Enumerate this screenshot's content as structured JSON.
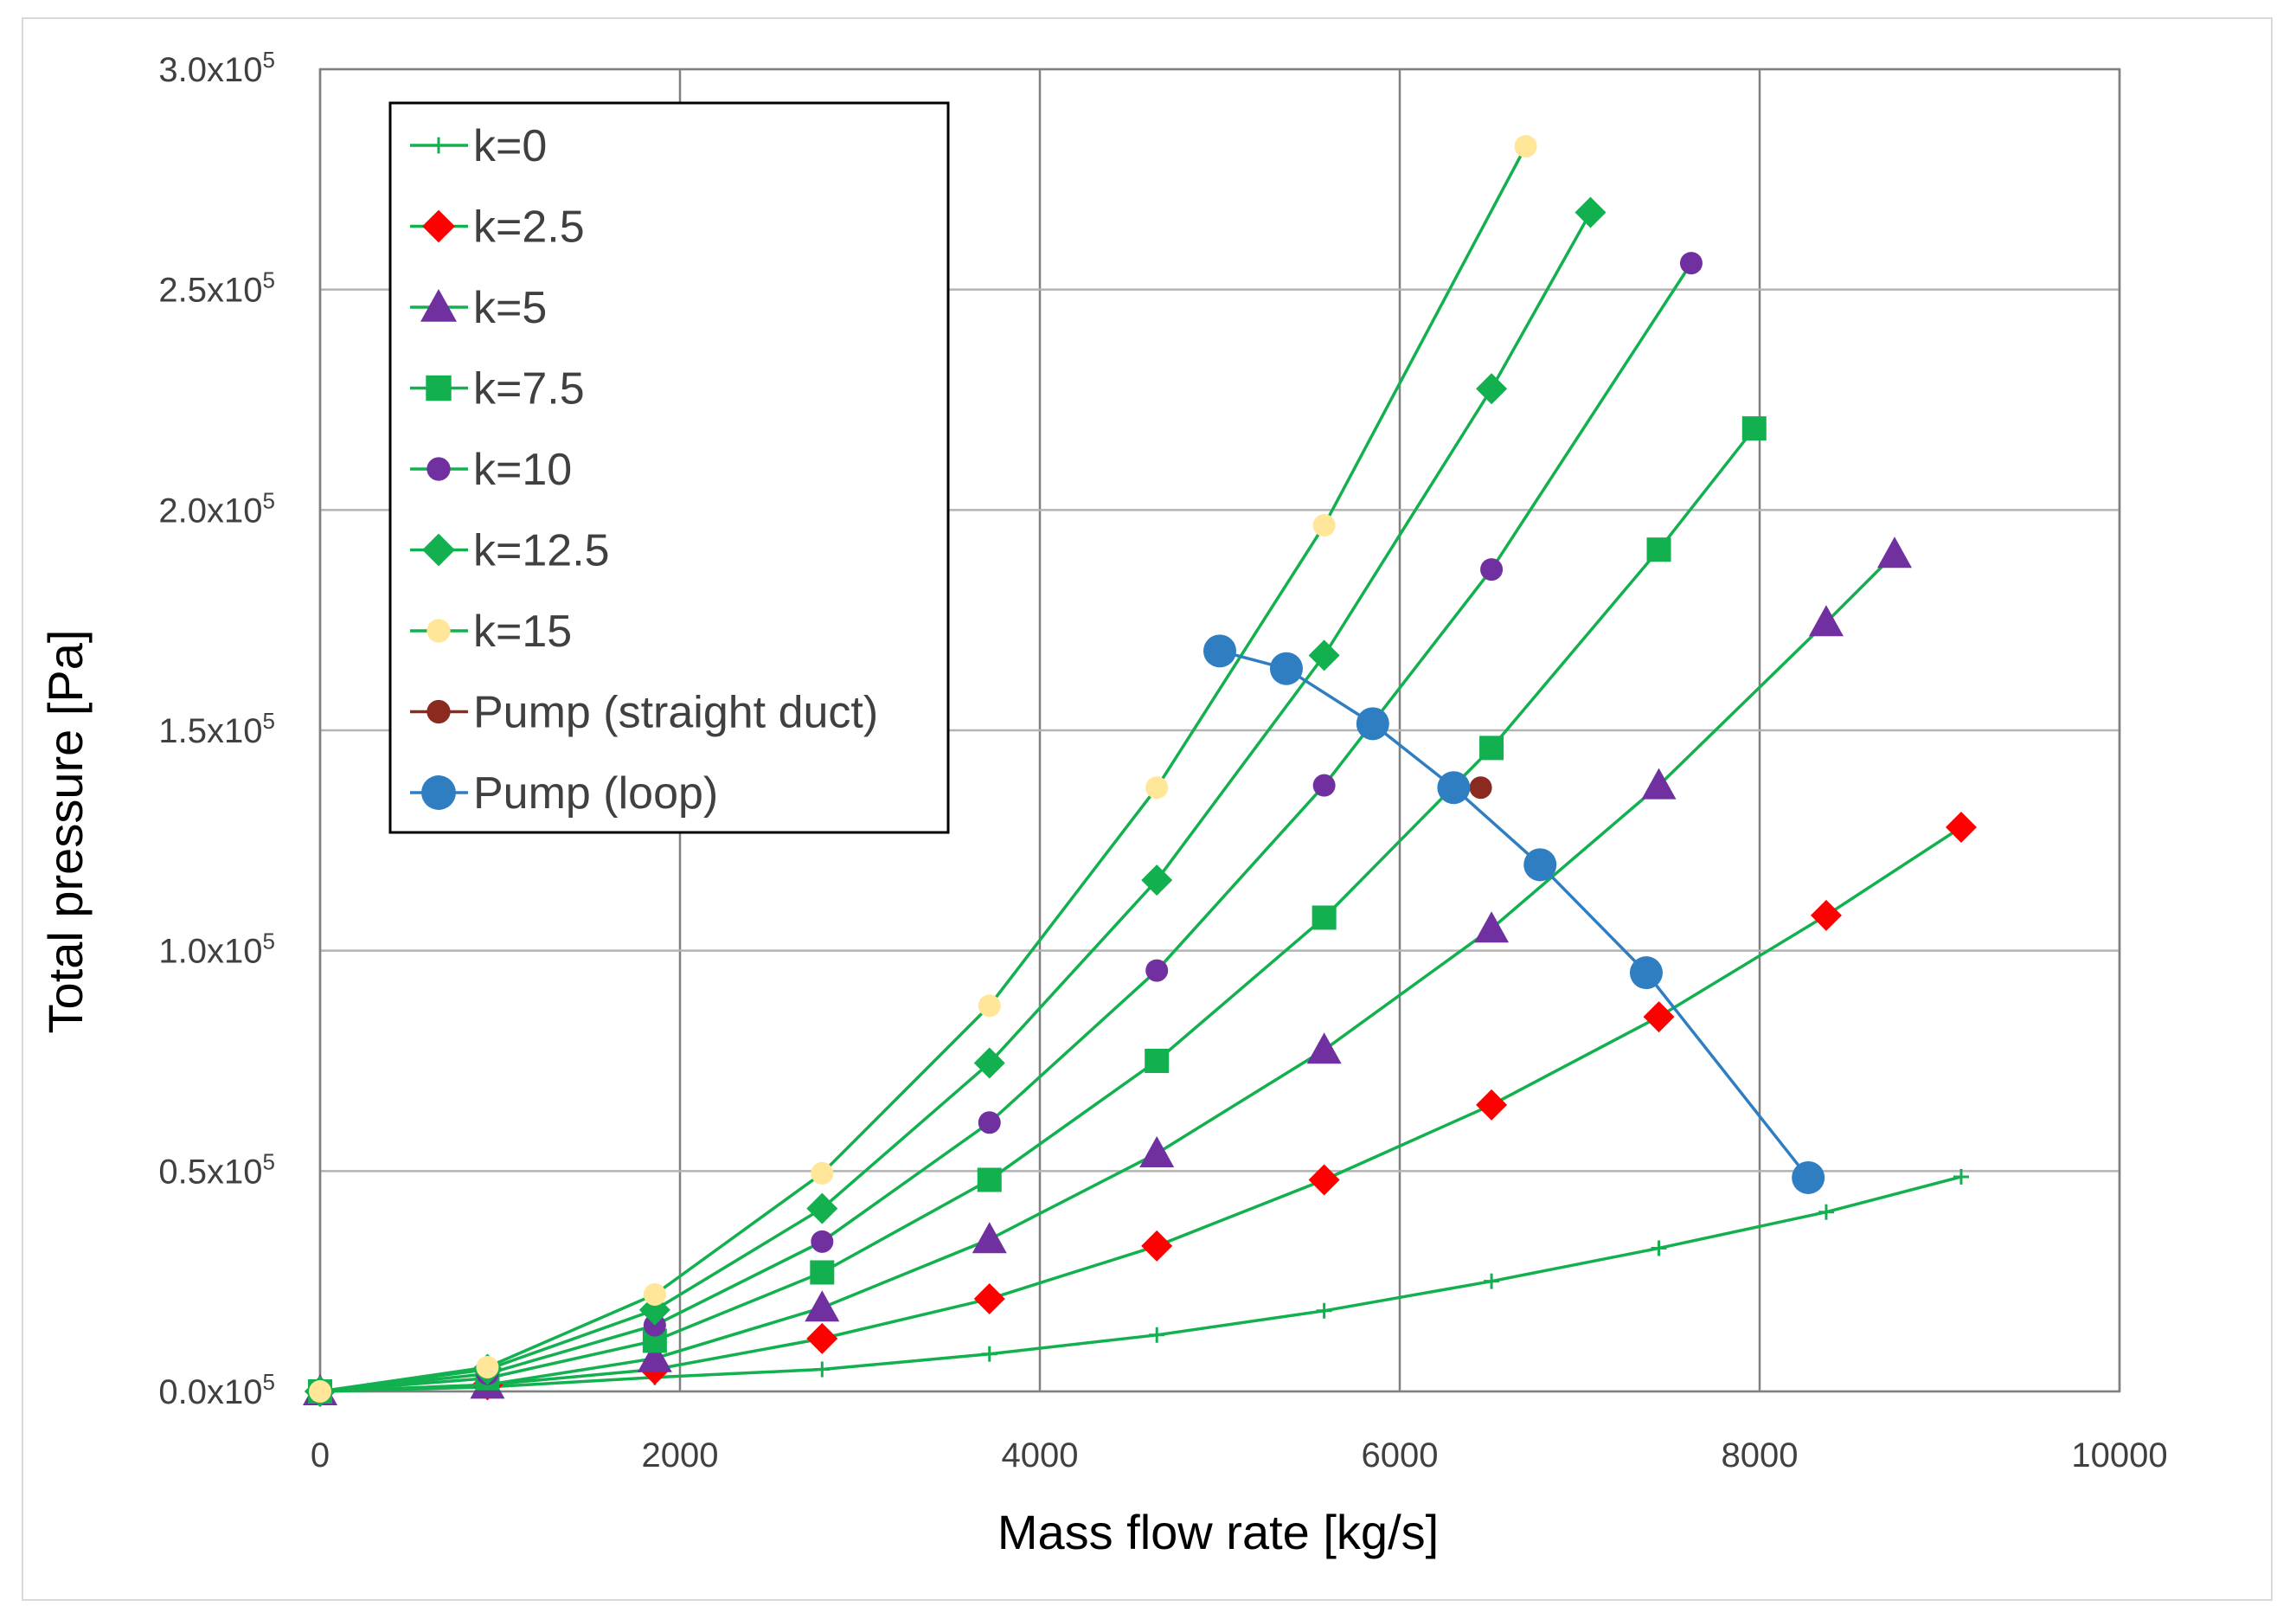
{
  "chart_data": {
    "type": "line",
    "title": "",
    "xlabel": "Mass flow rate [kg/s]",
    "ylabel": "Total pressure [Pa]",
    "xlim": [
      0,
      10000
    ],
    "ylim": [
      0,
      300000
    ],
    "grid": true,
    "legend_position": "top-left",
    "x_ticks": [
      "0",
      "2000",
      "4000",
      "6000",
      "8000",
      "10000"
    ],
    "x_tick_values": [
      0,
      2000,
      4000,
      6000,
      8000,
      10000
    ],
    "y_ticks": [
      {
        "mantissa": "0.0x10",
        "exp": "5",
        "value": 0
      },
      {
        "mantissa": "0.5x10",
        "exp": "5",
        "value": 50000
      },
      {
        "mantissa": "1.0x10",
        "exp": "5",
        "value": 100000
      },
      {
        "mantissa": "1.5x10",
        "exp": "5",
        "value": 150000
      },
      {
        "mantissa": "2.0x10",
        "exp": "5",
        "value": 200000
      },
      {
        "mantissa": "2.5x10",
        "exp": "5",
        "value": 250000
      },
      {
        "mantissa": "3.0x10",
        "exp": "5",
        "value": 300000
      }
    ],
    "series": [
      {
        "name": "k=0",
        "marker": "plus",
        "line_color": "#12b04e",
        "marker_color": "#12b04e",
        "points": [
          [
            0,
            0
          ],
          [
            930,
            1000
          ],
          [
            1860,
            3200
          ],
          [
            2790,
            5000
          ],
          [
            3720,
            8500
          ],
          [
            4650,
            12800
          ],
          [
            5580,
            18300
          ],
          [
            6510,
            25000
          ],
          [
            7440,
            32500
          ],
          [
            8370,
            40700
          ],
          [
            9120,
            48700
          ]
        ]
      },
      {
        "name": "k=2.5",
        "marker": "diamond",
        "line_color": "#12b04e",
        "marker_color": "#ff0000",
        "points": [
          [
            0,
            0
          ],
          [
            930,
            1500
          ],
          [
            1860,
            5000
          ],
          [
            2790,
            12000
          ],
          [
            3720,
            21000
          ],
          [
            4650,
            33000
          ],
          [
            5580,
            48000
          ],
          [
            6510,
            65000
          ],
          [
            7440,
            85000
          ],
          [
            8370,
            108000
          ],
          [
            9120,
            128000
          ]
        ]
      },
      {
        "name": "k=5",
        "marker": "triangle",
        "line_color": "#12b04e",
        "marker_color": "#7030a0",
        "points": [
          [
            0,
            0
          ],
          [
            930,
            1500
          ],
          [
            1860,
            7500
          ],
          [
            2790,
            19000
          ],
          [
            3720,
            34500
          ],
          [
            4650,
            54000
          ],
          [
            5580,
            77500
          ],
          [
            6510,
            105000
          ],
          [
            7440,
            137500
          ],
          [
            8370,
            174500
          ],
          [
            8750,
            190000
          ]
        ]
      },
      {
        "name": "k=7.5",
        "marker": "square",
        "line_color": "#12b04e",
        "marker_color": "#12b04e",
        "points": [
          [
            0,
            0
          ],
          [
            930,
            3000
          ],
          [
            1860,
            11500
          ],
          [
            2790,
            27000
          ],
          [
            3720,
            48000
          ],
          [
            4650,
            75000
          ],
          [
            5580,
            107500
          ],
          [
            6510,
            146000
          ],
          [
            7440,
            191000
          ],
          [
            7970,
            218500
          ]
        ]
      },
      {
        "name": "k=10",
        "marker": "circle",
        "line_color": "#12b04e",
        "marker_color": "#7030a0",
        "points": [
          [
            0,
            0
          ],
          [
            930,
            4000
          ],
          [
            1860,
            15000
          ],
          [
            2790,
            34000
          ],
          [
            3720,
            61000
          ],
          [
            4650,
            95500
          ],
          [
            5580,
            137500
          ],
          [
            6510,
            186500
          ],
          [
            7620,
            256000
          ]
        ]
      },
      {
        "name": "k=12.5",
        "marker": "diamond",
        "line_color": "#12b04e",
        "marker_color": "#12b04e",
        "points": [
          [
            0,
            0
          ],
          [
            930,
            5000
          ],
          [
            1860,
            18500
          ],
          [
            2790,
            41500
          ],
          [
            3720,
            74500
          ],
          [
            4650,
            116000
          ],
          [
            5580,
            167000
          ],
          [
            6510,
            227500
          ],
          [
            7060,
            267500
          ]
        ]
      },
      {
        "name": "k=15",
        "marker": "circle",
        "line_color": "#12b04e",
        "marker_color": "#ffe699",
        "points": [
          [
            0,
            0
          ],
          [
            930,
            5500
          ],
          [
            1860,
            22000
          ],
          [
            2790,
            49500
          ],
          [
            3720,
            87500
          ],
          [
            4650,
            137000
          ],
          [
            5580,
            196500
          ],
          [
            6700,
            282500
          ]
        ]
      },
      {
        "name": "Pump (straight duct)",
        "marker": "circle",
        "line_color": "#8b2a1f",
        "marker_color": "#8b2a1f",
        "points": [
          [
            6450,
            137000
          ]
        ]
      },
      {
        "name": "Pump (loop)",
        "marker": "circle-large",
        "line_color": "#2e7ec1",
        "marker_color": "#2e7ec1",
        "points": [
          [
            5000,
            168000
          ],
          [
            5370,
            164000
          ],
          [
            5850,
            151500
          ],
          [
            6300,
            137000
          ],
          [
            6780,
            119500
          ],
          [
            7370,
            95000
          ],
          [
            8270,
            48500
          ]
        ]
      }
    ]
  }
}
